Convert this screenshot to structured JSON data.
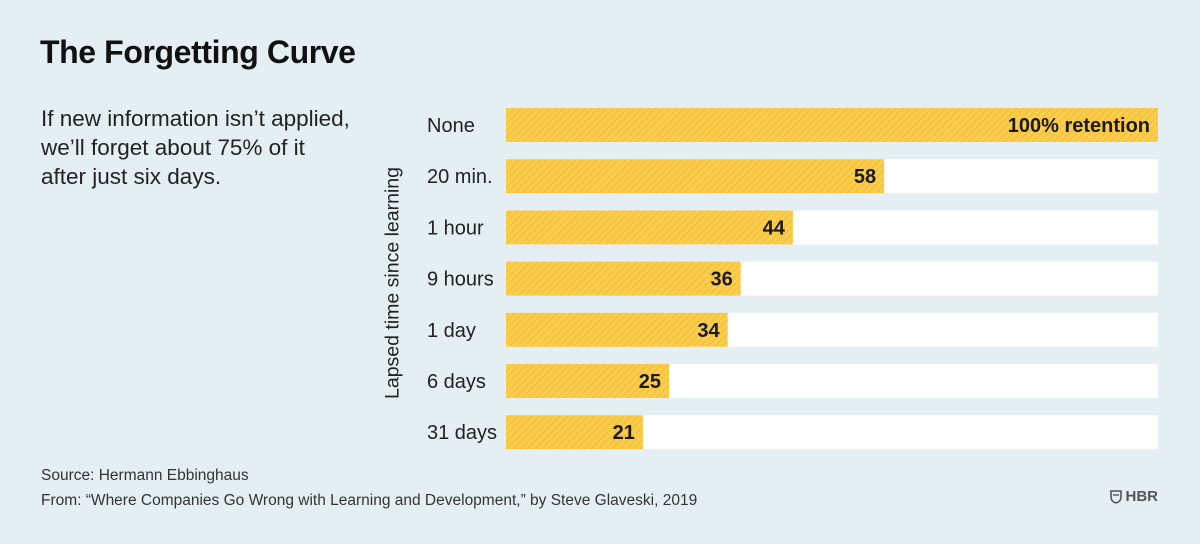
{
  "title": "The Forgetting Curve",
  "subtitle": "If new information isn’t applied, we’ll forget about 75% of it after just six days.",
  "source_line": "Source: Hermann Ebbinghaus",
  "from_line": "From: “Where Companies Go Wrong with Learning and Development,” by Steve Glaveski, 2019",
  "logo_text": "HBR",
  "logo_icon": "shield-icon",
  "colors": {
    "background": "#e3eff3",
    "bar_fill": "#fbcd4f",
    "bar_stripe": "#f0b825",
    "track": "#ffffff"
  },
  "chart_data": {
    "type": "bar",
    "orientation": "horizontal",
    "ylabel": "Lapsed time since learning",
    "xlim": [
      0,
      100
    ],
    "categories": [
      "None",
      "20 min.",
      "1 hour",
      "9 hours",
      "1 day",
      "6 days",
      "31 days"
    ],
    "values": [
      100,
      58,
      44,
      36,
      34,
      25,
      21
    ],
    "data_labels": [
      "100% retention",
      "58",
      "44",
      "36",
      "34",
      "25",
      "21"
    ],
    "grid": false,
    "legend": "none"
  }
}
